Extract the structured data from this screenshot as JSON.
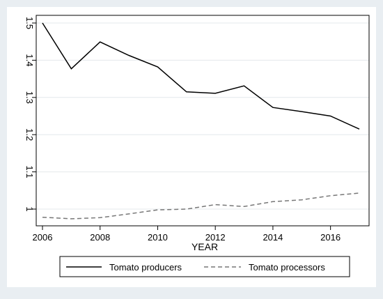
{
  "chart_data": {
    "type": "line",
    "title": "",
    "xlabel": "YEAR",
    "ylabel": "",
    "xlim": [
      2006,
      2017
    ],
    "ylim": [
      0.97,
      1.5
    ],
    "x_ticks": [
      2006,
      2008,
      2010,
      2012,
      2014,
      2016
    ],
    "x_tick_labels": [
      "2006",
      "2008",
      "2010",
      "2012",
      "2014",
      "2016"
    ],
    "y_ticks": [
      1.0,
      1.1,
      1.2,
      1.3,
      1.4,
      1.5
    ],
    "y_tick_labels": [
      "1",
      "1.1",
      "1.2",
      "1.3",
      "1.4",
      "1.5"
    ],
    "grid": "horizontal",
    "legend_position": "bottom",
    "x": [
      2006,
      2007,
      2008,
      2009,
      2010,
      2011,
      2012,
      2013,
      2014,
      2015,
      2016,
      2017
    ],
    "series": [
      {
        "name": "Tomato producers",
        "color": "#000000",
        "style": "solid",
        "values": [
          1.5,
          1.377,
          1.449,
          1.413,
          1.382,
          1.315,
          1.311,
          1.331,
          1.273,
          1.262,
          1.25,
          1.215
        ]
      },
      {
        "name": "Tomato processors",
        "color": "#777777",
        "style": "dashed",
        "values": [
          0.978,
          0.974,
          0.977,
          0.987,
          0.998,
          1.0,
          1.012,
          1.007,
          1.02,
          1.025,
          1.036,
          1.043
        ]
      }
    ]
  }
}
